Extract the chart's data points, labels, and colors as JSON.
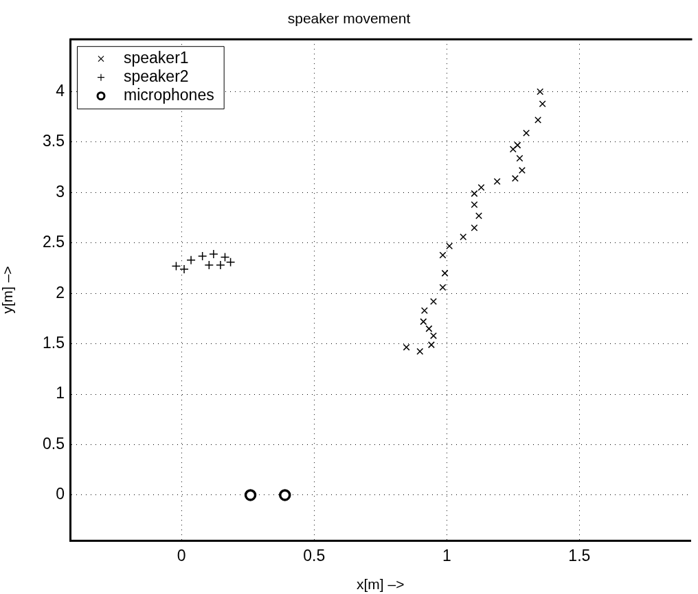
{
  "chart_data": {
    "type": "scatter",
    "title": "speaker movement",
    "xlabel": "x[m] –>",
    "ylabel": "y[m] –>",
    "xlim": [
      -0.42,
      1.92
    ],
    "ylim": [
      -0.45,
      4.52
    ],
    "xticks": [
      0,
      0.5,
      1,
      1.5
    ],
    "yticks": [
      0,
      0.5,
      1,
      1.5,
      2,
      2.5,
      3,
      3.5,
      4
    ],
    "grid": true,
    "legend": "top left",
    "series": [
      {
        "name": "speaker1",
        "color": "#000000",
        "marker": "cross",
        "x": [
          0.848,
          0.899,
          0.942,
          0.95,
          0.933,
          0.912,
          0.916,
          0.95,
          0.985,
          0.993,
          0.985,
          1.01,
          1.062,
          1.104,
          1.121,
          1.104,
          1.104,
          1.13,
          1.19,
          1.258,
          1.284,
          1.275,
          1.25,
          1.267,
          1.3,
          1.344,
          1.361,
          1.352
        ],
        "values": [
          1.466,
          1.425,
          1.49,
          1.58,
          1.65,
          1.72,
          1.83,
          1.92,
          2.06,
          2.2,
          2.38,
          2.47,
          2.56,
          2.65,
          2.77,
          2.88,
          2.99,
          3.05,
          3.11,
          3.14,
          3.22,
          3.34,
          3.43,
          3.47,
          3.59,
          3.72,
          3.88,
          4.0
        ]
      },
      {
        "name": "speaker2",
        "color": "#000000",
        "marker": "plus",
        "x": [
          -0.02,
          0.01,
          0.036,
          0.079,
          0.121,
          0.164,
          0.185,
          0.147,
          0.104
        ],
        "values": [
          2.27,
          2.24,
          2.33,
          2.37,
          2.39,
          2.36,
          2.31,
          2.28,
          2.28
        ]
      },
      {
        "name": "microphones",
        "color": "#000000",
        "marker": "circle",
        "x": [
          0.26,
          0.39
        ],
        "values": [
          0,
          0
        ]
      }
    ]
  }
}
